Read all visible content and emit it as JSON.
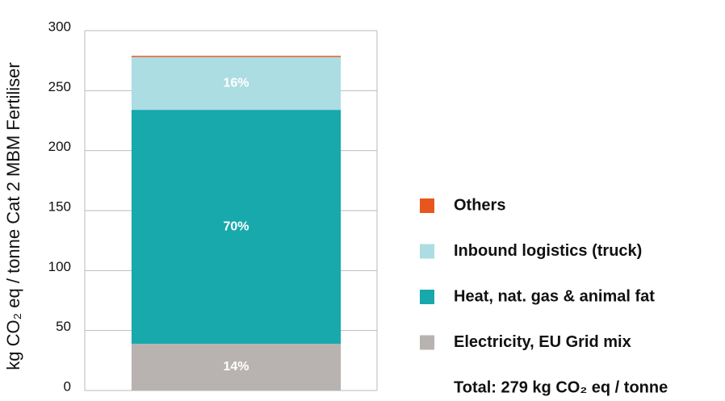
{
  "chart_data": {
    "type": "stacked-bar",
    "y_label": "kg CO₂ eq / tonne Cat 2 MBM Fertiliser",
    "total_note": "Total: 279 kg CO₂ eq / tonne",
    "categories": [
      null
    ],
    "series": [
      {
        "name": "Electricity, EU Grid mix",
        "color": "#b8b3b0",
        "values": [
          39
        ],
        "labels": [
          "14%"
        ]
      },
      {
        "name": "Heat, nat. gas & animal fat",
        "color": "#17a9ac",
        "values": [
          195
        ],
        "labels": [
          "70%"
        ]
      },
      {
        "name": "Inbound logistics (truck)",
        "color": "#acdde3",
        "values": [
          44
        ],
        "labels": [
          "16%"
        ]
      },
      {
        "name": "Others",
        "color": "#e8561e",
        "values": [
          1
        ]
      }
    ],
    "ylim": [
      0,
      300
    ],
    "yticks": [
      0,
      50,
      100,
      150,
      200,
      250,
      300
    ],
    "grid": true
  }
}
